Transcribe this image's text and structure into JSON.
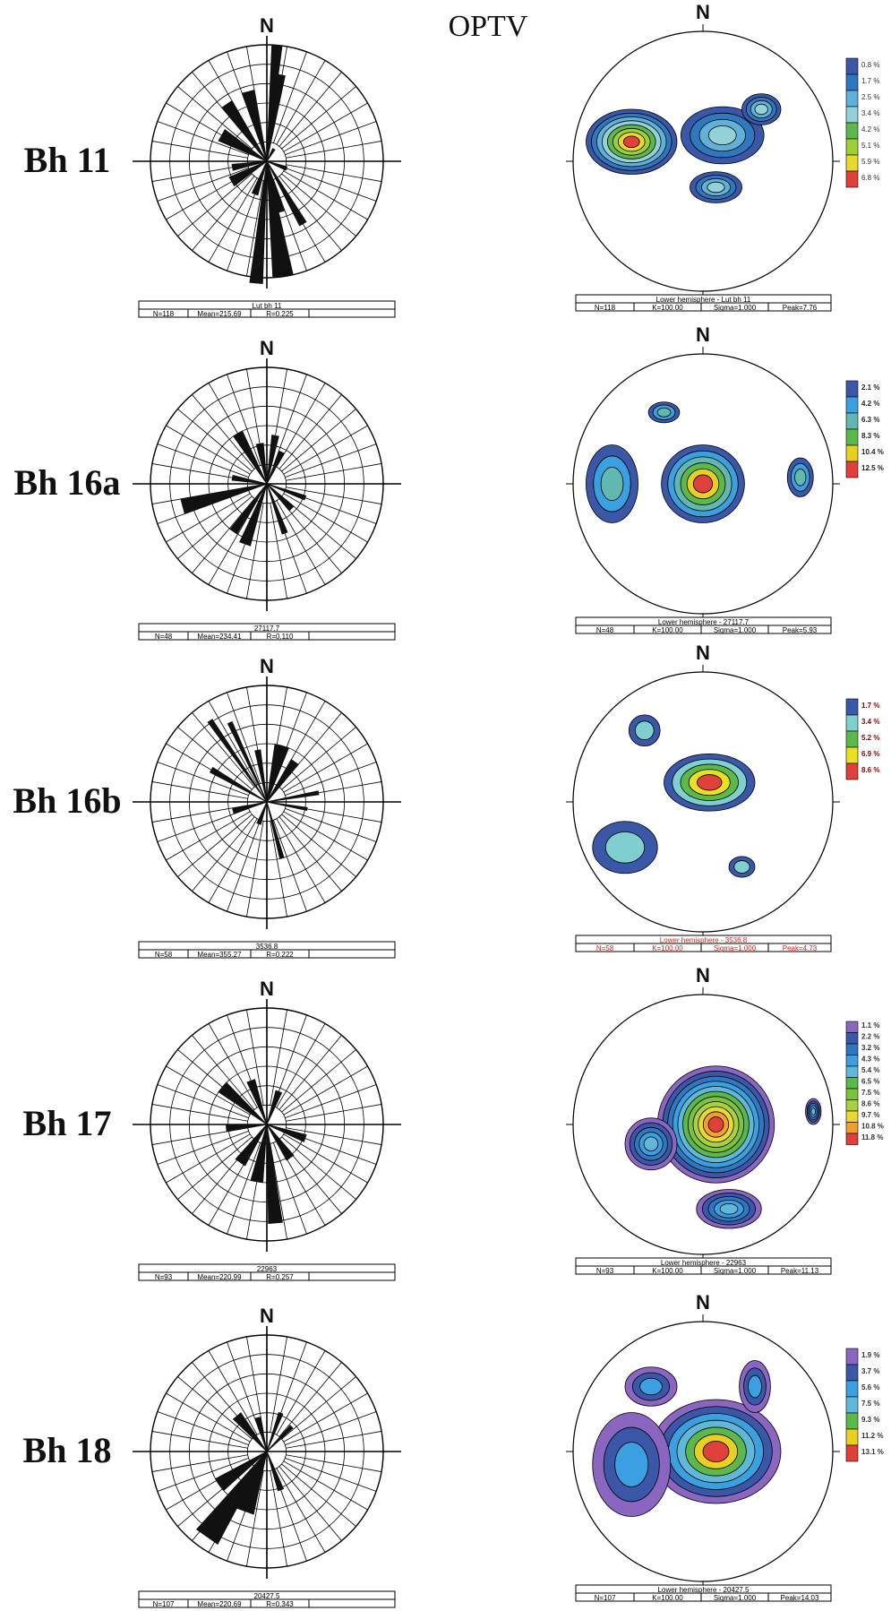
{
  "header": {
    "title": "OPTV"
  },
  "north_label": "N",
  "panels": [
    {
      "name": "Bh 11",
      "rose": {
        "caption": "Lut bh 11",
        "stats": [
          "N=118",
          "Mean=215.69",
          "R=0.225"
        ],
        "petals": [
          {
            "az": 5,
            "r": 1.0,
            "w": 5
          },
          {
            "az": 10,
            "r": 0.75,
            "w": 4
          },
          {
            "az": 30,
            "r": 0.12,
            "w": 10
          },
          {
            "az": 110,
            "r": 0.18,
            "w": 10
          },
          {
            "az": 150,
            "r": 0.62,
            "w": 6
          },
          {
            "az": 165,
            "r": 0.45,
            "w": 8
          },
          {
            "az": 172,
            "r": 1.0,
            "w": 10
          },
          {
            "az": 185,
            "r": 1.05,
            "w": 6
          },
          {
            "az": 200,
            "r": 0.3,
            "w": 10
          },
          {
            "az": 240,
            "r": 0.35,
            "w": 14
          },
          {
            "az": 260,
            "r": 0.3,
            "w": 10
          },
          {
            "az": 300,
            "r": 0.45,
            "w": 14
          },
          {
            "az": 325,
            "r": 0.6,
            "w": 10
          },
          {
            "az": 345,
            "r": 0.62,
            "w": 10
          }
        ]
      },
      "stereonet": {
        "caption": "Lower hemisphere - Lut bh 11",
        "stats": [
          "N=118",
          "K=100.00",
          "Sigma=1.000",
          "Peak=7.76"
        ],
        "legend": [
          "0.8 %",
          "1.7 %",
          "2.5 %",
          "3.4 %",
          "4.2 %",
          "5.1 %",
          "5.9 %",
          "6.8 %"
        ],
        "colors": [
          "#3a57a8",
          "#2f78c0",
          "#60b0d8",
          "#93d0d8",
          "#5cb84a",
          "#9fce3a",
          "#e8d830",
          "#e0403a"
        ],
        "legend_text_color": "#333333",
        "caption_color": "#000000"
      }
    },
    {
      "name": "Bh 16a",
      "rose": {
        "caption": "27117.7",
        "stats": [
          "N=48",
          "Mean=234.41",
          "R=0.110"
        ],
        "petals": [
          {
            "az": 10,
            "r": 0.42,
            "w": 8
          },
          {
            "az": 25,
            "r": 0.3,
            "w": 8
          },
          {
            "az": 110,
            "r": 0.35,
            "w": 6
          },
          {
            "az": 135,
            "r": 0.3,
            "w": 10
          },
          {
            "az": 160,
            "r": 0.45,
            "w": 6
          },
          {
            "az": 200,
            "r": 0.55,
            "w": 10
          },
          {
            "az": 215,
            "r": 0.5,
            "w": 8
          },
          {
            "az": 255,
            "r": 0.75,
            "w": 10
          },
          {
            "az": 280,
            "r": 0.3,
            "w": 8
          },
          {
            "az": 330,
            "r": 0.5,
            "w": 10
          },
          {
            "az": 350,
            "r": 0.35,
            "w": 10
          }
        ]
      },
      "stereonet": {
        "caption": "Lower hemisphere - 27117.7",
        "stats": [
          "N=48",
          "K=100.00",
          "Sigma=1.000",
          "Peak=5.93"
        ],
        "legend": [
          "2.1 %",
          "4.2 %",
          "6.3 %",
          "8.3 %",
          "10.4 %",
          "12.5 %"
        ],
        "colors": [
          "#3a57a8",
          "#3aa0e0",
          "#60b8b0",
          "#5cb84a",
          "#e8d020",
          "#e0403a"
        ],
        "legend_text_color": "#222222",
        "caption_color": "#000000"
      }
    },
    {
      "name": "Bh 16b",
      "rose": {
        "caption": "3536.8",
        "stats": [
          "N=58",
          "Mean=355.27",
          "R=0.222"
        ],
        "petals": [
          {
            "az": 15,
            "r": 0.5,
            "w": 14
          },
          {
            "az": 35,
            "r": 0.42,
            "w": 10
          },
          {
            "az": 80,
            "r": 0.45,
            "w": 4
          },
          {
            "az": 100,
            "r": 0.35,
            "w": 4
          },
          {
            "az": 165,
            "r": 0.5,
            "w": 4
          },
          {
            "az": 200,
            "r": 0.2,
            "w": 10
          },
          {
            "az": 255,
            "r": 0.3,
            "w": 8
          },
          {
            "az": 300,
            "r": 0.55,
            "w": 5
          },
          {
            "az": 325,
            "r": 0.85,
            "w": 3
          },
          {
            "az": 335,
            "r": 0.75,
            "w": 3
          },
          {
            "az": 350,
            "r": 0.45,
            "w": 6
          }
        ]
      },
      "stereonet": {
        "caption": "Lower hemisphere - 3536.8",
        "stats": [
          "N=58",
          "K=100.00",
          "Sigma=1.000",
          "Peak=4.73"
        ],
        "legend": [
          "1.7 %",
          "3.4 %",
          "5.2 %",
          "6.9 %",
          "8.6 %"
        ],
        "colors": [
          "#3a57a8",
          "#7fcfd0",
          "#5cb84a",
          "#e8e020",
          "#e0403a"
        ],
        "legend_text_color": "#8b0000",
        "caption_color": "#e02020"
      }
    },
    {
      "name": "Bh 17",
      "rose": {
        "caption": "22963",
        "stats": [
          "N=93",
          "Mean=220.99",
          "R=0.257"
        ],
        "petals": [
          {
            "az": 20,
            "r": 0.3,
            "w": 10
          },
          {
            "az": 110,
            "r": 0.35,
            "w": 10
          },
          {
            "az": 145,
            "r": 0.35,
            "w": 12
          },
          {
            "az": 175,
            "r": 0.85,
            "w": 8
          },
          {
            "az": 190,
            "r": 0.5,
            "w": 12
          },
          {
            "az": 215,
            "r": 0.4,
            "w": 14
          },
          {
            "az": 265,
            "r": 0.35,
            "w": 10
          },
          {
            "az": 310,
            "r": 0.5,
            "w": 12
          },
          {
            "az": 340,
            "r": 0.4,
            "w": 10
          }
        ]
      },
      "stereonet": {
        "caption": "Lower hemisphere - 22963",
        "stats": [
          "N=93",
          "K=100.00",
          "Sigma=1.000",
          "Peak=11.13"
        ],
        "legend": [
          "1.1 %",
          "2.2 %",
          "3.2 %",
          "4.3 %",
          "5.4 %",
          "6.5 %",
          "7.5 %",
          "8.6 %",
          "9.7 %",
          "10.8 %",
          "11.8 %"
        ],
        "colors": [
          "#8a66c0",
          "#3a57a8",
          "#2f78c0",
          "#3aa0e0",
          "#60b8d8",
          "#5cb84a",
          "#7cc240",
          "#a8d040",
          "#e8d830",
          "#f0a030",
          "#e0403a"
        ],
        "legend_text_color": "#333333",
        "caption_color": "#000000"
      }
    },
    {
      "name": "Bh 18",
      "rose": {
        "caption": "20427.5",
        "stats": [
          "N=107",
          "Mean=220.69",
          "R=0.343"
        ],
        "petals": [
          {
            "az": 20,
            "r": 0.35,
            "w": 6
          },
          {
            "az": 45,
            "r": 0.3,
            "w": 6
          },
          {
            "az": 160,
            "r": 0.35,
            "w": 8
          },
          {
            "az": 200,
            "r": 0.55,
            "w": 16
          },
          {
            "az": 215,
            "r": 0.9,
            "w": 14
          },
          {
            "az": 235,
            "r": 0.5,
            "w": 14
          },
          {
            "az": 320,
            "r": 0.4,
            "w": 12
          },
          {
            "az": 345,
            "r": 0.3,
            "w": 8
          }
        ]
      },
      "stereonet": {
        "caption": "Lower hemisphere - 20427.5",
        "stats": [
          "N=107",
          "K=100.00",
          "Sigma=1.000",
          "Peak=14.03"
        ],
        "legend": [
          "1.9 %",
          "3.7 %",
          "5.6 %",
          "7.5 %",
          "9.3 %",
          "11.2 %",
          "13.1 %"
        ],
        "colors": [
          "#8a66c0",
          "#3a57a8",
          "#3aa0e0",
          "#60b8d8",
          "#5cb84a",
          "#e8d020",
          "#e0403a"
        ],
        "legend_text_color": "#333333",
        "caption_color": "#000000"
      }
    }
  ]
}
